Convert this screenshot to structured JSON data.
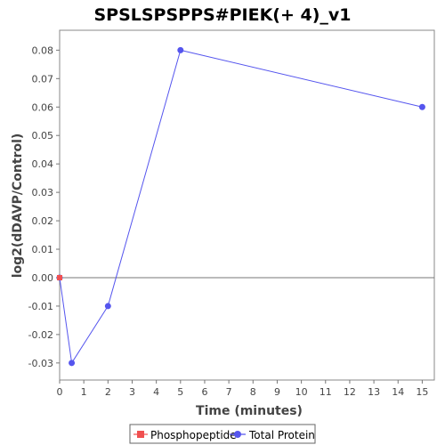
{
  "chart_data": {
    "type": "line",
    "title": "SPSLSPSPPS#PIEK(+ 4)_v1",
    "xlabel": "Time (minutes)",
    "ylabel": "log2(dDAVP/Control)",
    "xlim": [
      0,
      15.5
    ],
    "ylim": [
      -0.036,
      0.087
    ],
    "x_ticks": [
      0,
      1,
      2,
      3,
      4,
      5,
      6,
      7,
      8,
      9,
      10,
      11,
      12,
      13,
      14,
      15
    ],
    "y_ticks": [
      -0.03,
      -0.02,
      -0.01,
      0.0,
      0.01,
      0.02,
      0.03,
      0.04,
      0.05,
      0.06,
      0.07,
      0.08
    ],
    "y_tick_labels": [
      "-0.03",
      "-0.02",
      "-0.01",
      "0.00",
      "0.01",
      "0.02",
      "0.03",
      "0.04",
      "0.05",
      "0.06",
      "0.07",
      "0.08"
    ],
    "zero_line": true,
    "grid": false,
    "legend_position": "bottom-center",
    "series": [
      {
        "name": "Phosphopeptide",
        "color": "#f05050",
        "marker": "square",
        "points": [
          {
            "x": 0,
            "y": 0.0
          }
        ]
      },
      {
        "name": "Total Protein",
        "color": "#5555ee",
        "marker": "circle",
        "points": [
          {
            "x": 0,
            "y": 0.0
          },
          {
            "x": 0.5,
            "y": -0.03
          },
          {
            "x": 2,
            "y": -0.01
          },
          {
            "x": 5,
            "y": 0.08
          },
          {
            "x": 15,
            "y": 0.06
          }
        ]
      }
    ]
  }
}
